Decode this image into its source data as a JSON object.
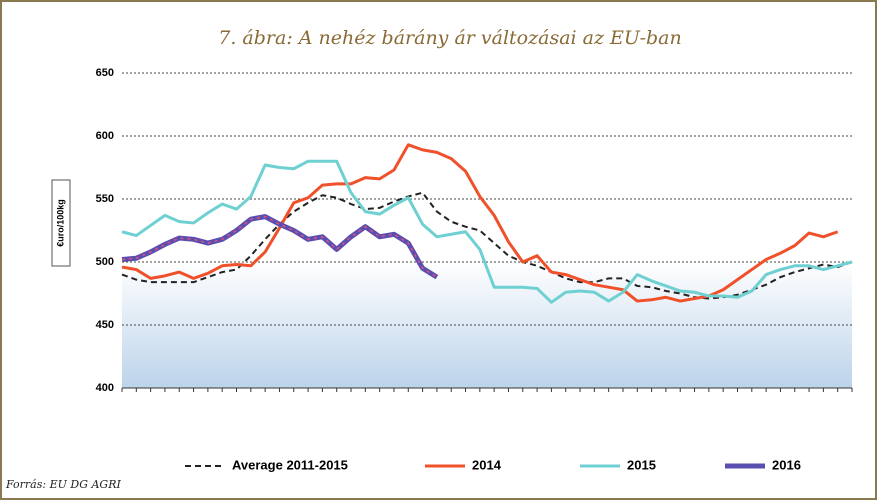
{
  "chart_data": {
    "type": "line",
    "title": "7. ábra: A nehéz bárány ár változásai az EU-ban",
    "y_label": "€uro/100kg",
    "source": "Forrás: EU DG AGRI",
    "categories": [
      null,
      null,
      null,
      null,
      null,
      null,
      null,
      null,
      null,
      null,
      null,
      null,
      null,
      null,
      null,
      null,
      null,
      null,
      null,
      null,
      null,
      null,
      null,
      null,
      null,
      null,
      null,
      null,
      null,
      null,
      null,
      null,
      null,
      null,
      null,
      null,
      null,
      null,
      null,
      null,
      null,
      null,
      null,
      null,
      null,
      null,
      null,
      null,
      null,
      null,
      null,
      null
    ],
    "ylim": [
      400,
      650
    ],
    "yticks": [
      400,
      450,
      500,
      550,
      600,
      650
    ],
    "grid": true,
    "series": [
      {
        "name": "Average 2011-2015",
        "color": "#222222",
        "dash": true,
        "values": [
          490,
          486,
          484,
          484,
          484,
          484,
          488,
          492,
          494,
          505,
          518,
          530,
          540,
          547,
          553,
          551,
          546,
          542,
          543,
          548,
          552,
          555,
          540,
          532,
          528,
          525,
          515,
          505,
          500,
          497,
          492,
          487,
          484,
          484,
          487,
          487,
          481,
          480,
          477,
          475,
          472,
          471,
          472,
          474,
          478,
          482,
          488,
          492,
          495,
          498,
          496,
          500
        ]
      },
      {
        "name": "2014",
        "color": "#f0502a",
        "values": [
          496,
          494,
          487,
          489,
          492,
          487,
          491,
          497,
          498,
          497,
          508,
          527,
          547,
          551,
          561,
          562,
          562,
          567,
          566,
          573,
          593,
          589,
          587,
          582,
          572,
          552,
          537,
          516,
          500,
          505,
          492,
          490,
          486,
          482,
          480,
          478,
          469,
          470,
          472,
          469,
          471,
          473,
          478,
          486,
          494,
          502,
          507,
          513,
          523,
          520,
          524,
          null
        ]
      },
      {
        "name": "2015",
        "color": "#6fd0d2",
        "values": [
          524,
          521,
          529,
          537,
          532,
          531,
          539,
          546,
          542,
          552,
          577,
          575,
          574,
          580,
          580,
          580,
          555,
          540,
          538,
          545,
          551,
          530,
          520,
          522,
          524,
          510,
          480,
          480,
          480,
          479,
          468,
          476,
          477,
          476,
          469,
          476,
          490,
          485,
          481,
          477,
          476,
          473,
          473,
          472,
          477,
          490,
          494,
          497,
          497,
          494,
          497,
          500
        ]
      },
      {
        "name": "2016",
        "color": "#5a4fb0",
        "values": [
          502,
          503,
          508,
          514,
          519,
          518,
          515,
          518,
          525,
          534,
          536,
          530,
          525,
          518,
          520,
          510,
          520,
          528,
          520,
          522,
          515,
          495,
          488,
          null,
          null,
          null,
          null,
          null,
          null,
          null,
          null,
          null,
          null,
          null,
          null,
          null,
          null,
          null,
          null,
          null,
          null,
          null,
          null,
          null,
          null,
          null,
          null,
          null,
          null,
          null,
          null,
          null
        ]
      }
    ]
  }
}
